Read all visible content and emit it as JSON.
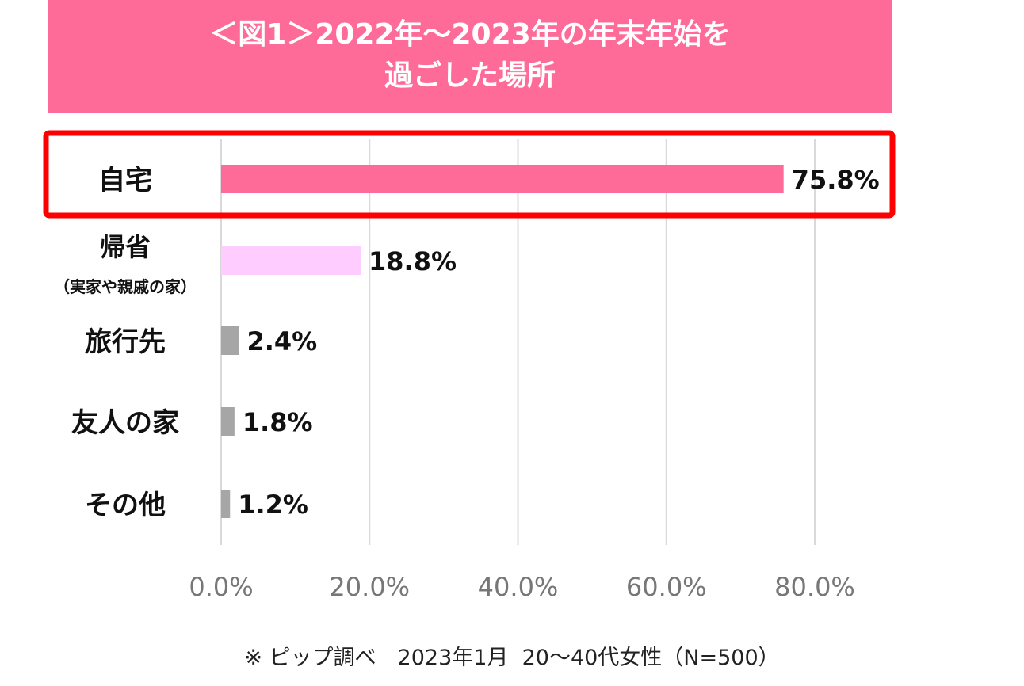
{
  "title_lines": [
    "＜図1＞2022年～2023年の年末年始を",
    "過ごした場所"
  ],
  "chart_data": {
    "type": "bar",
    "orientation": "horizontal",
    "title": "＜図1＞2022年～2023年の年末年始を過ごした場所",
    "categories": [
      {
        "label": "自宅",
        "sublabel": null
      },
      {
        "label": "帰省",
        "sublabel": "（実家や親戚の家）"
      },
      {
        "label": "旅行先",
        "sublabel": null
      },
      {
        "label": "友人の家",
        "sublabel": null
      },
      {
        "label": "その他",
        "sublabel": null
      }
    ],
    "values": [
      75.8,
      18.8,
      2.4,
      1.8,
      1.2
    ],
    "value_labels": [
      "75.8%",
      "18.8%",
      "2.4%",
      "1.8%",
      "1.2%"
    ],
    "bar_colors": [
      "#ff6b99",
      "#ffccff",
      "#a6a6a6",
      "#a6a6a6",
      "#a6a6a6"
    ],
    "xlim": [
      0,
      80
    ],
    "x_ticks": [
      0,
      20,
      40,
      60,
      80
    ],
    "x_tick_labels": [
      "0.0%",
      "20.0%",
      "40.0%",
      "60.0%",
      "80.0%"
    ],
    "grid": true,
    "highlight_category": "自宅",
    "highlight_color": "#ff0000"
  },
  "footnote": "※ ピップ調べ　2023年1月  20～40代女性（N=500）",
  "colors": {
    "title_bg": "#ff6b99",
    "title_text": "#ffffff",
    "grid": "#d9d9d9",
    "tick_text": "#777777"
  }
}
